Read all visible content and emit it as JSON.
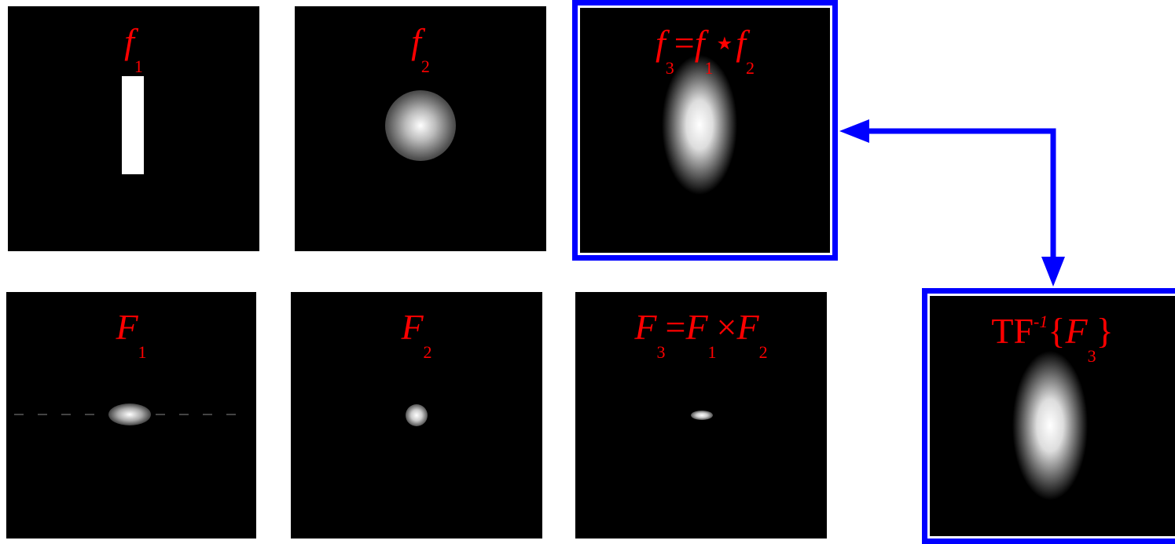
{
  "panels": [
    {
      "label": [
        {
          "text": "f",
          "sub": "1",
          "italic": true
        }
      ]
    },
    {
      "label": [
        {
          "text": "f",
          "sub": "2",
          "italic": true
        }
      ]
    },
    {
      "label": [
        {
          "text": "f",
          "sub": "3",
          "italic": true
        },
        {
          "text": "="
        },
        {
          "text": "f",
          "sub": "1",
          "italic": true
        },
        {
          "text": "⋆"
        },
        {
          "text": "f",
          "sub": "2",
          "italic": true
        }
      ]
    },
    {
      "label": [
        {
          "text": "F",
          "sub": "1",
          "italic": true
        }
      ]
    },
    {
      "label": [
        {
          "text": "F",
          "sub": "2",
          "italic": true
        }
      ]
    },
    {
      "label": [
        {
          "text": "F",
          "sub": "3",
          "italic": true
        },
        {
          "text": "="
        },
        {
          "text": "F",
          "sub": "1",
          "italic": true
        },
        {
          "text": "×"
        },
        {
          "text": "F",
          "sub": "2",
          "italic": true
        }
      ]
    },
    {
      "label": [
        {
          "text": "TF",
          "sup": "-1"
        },
        {
          "text": "{"
        },
        {
          "text": "F",
          "sub": "3",
          "italic": true
        },
        {
          "text": "}"
        }
      ]
    }
  ]
}
